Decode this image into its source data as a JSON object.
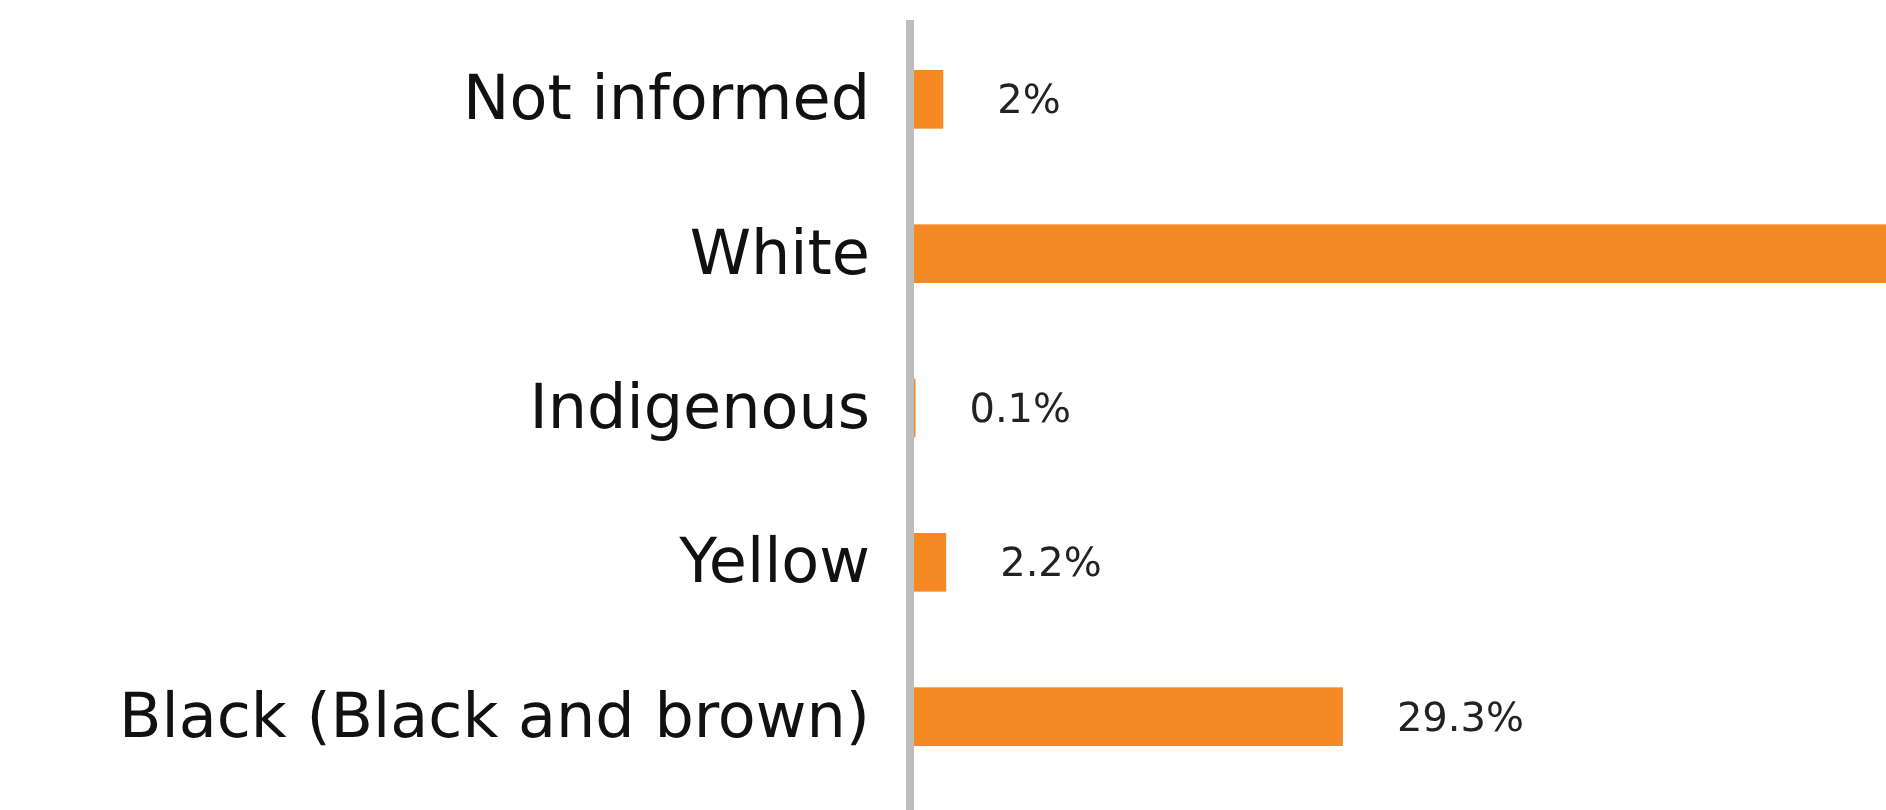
{
  "chart_data": {
    "type": "bar",
    "orientation": "horizontal",
    "categories": [
      "Not informed",
      "White",
      "Indigenous",
      "Yellow",
      "Black (Black and brown)"
    ],
    "values": [
      2,
      66.4,
      0.1,
      2.2,
      29.3
    ],
    "value_labels": [
      "2%",
      null,
      "0.1%",
      "2.2%",
      "29.3%"
    ],
    "color": "#f58a24"
  }
}
